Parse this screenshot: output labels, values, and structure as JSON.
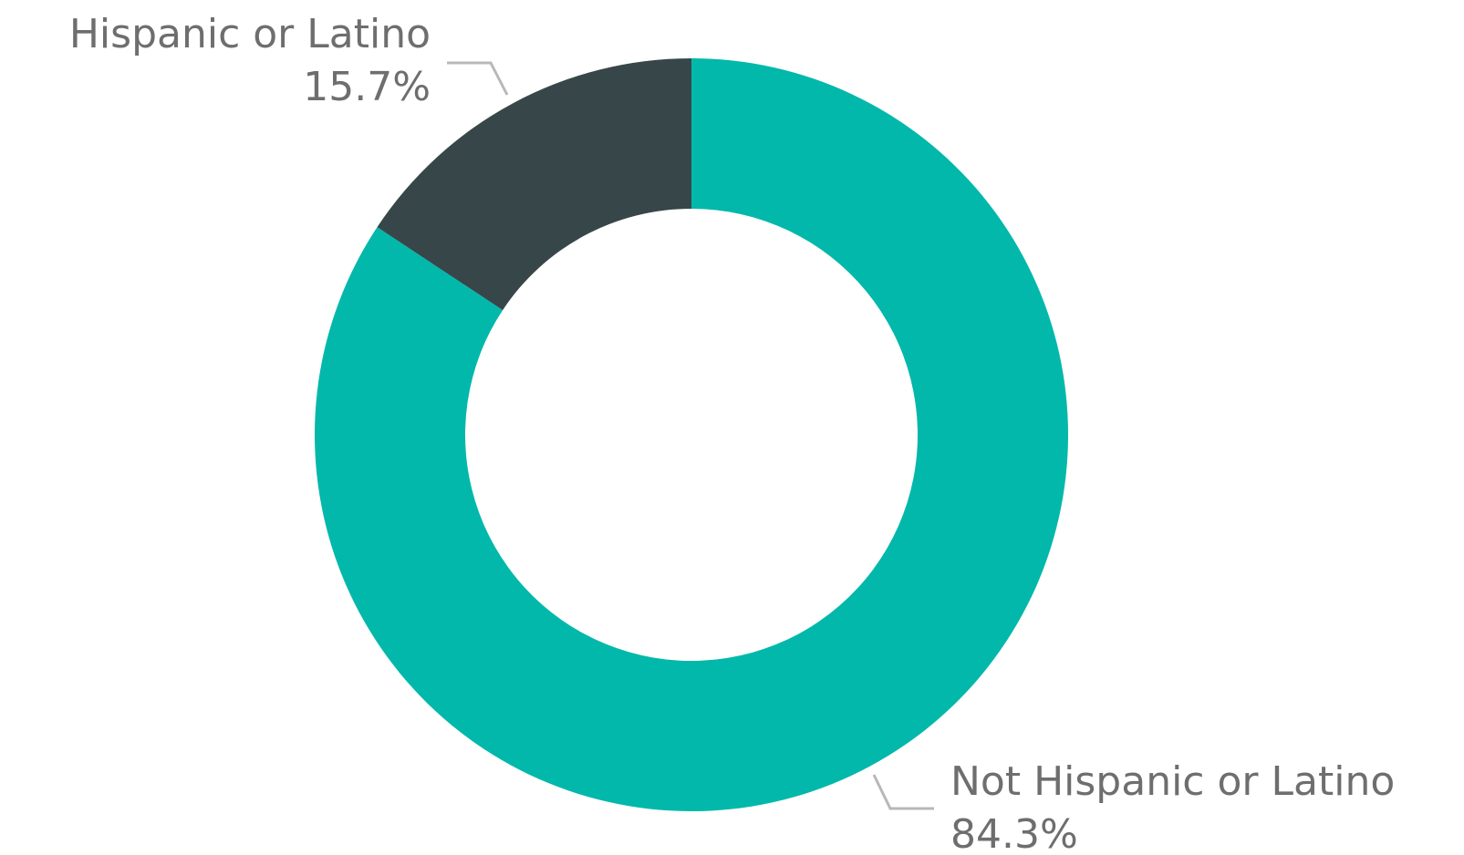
{
  "chart_data": {
    "type": "pie",
    "variant": "donut",
    "title": "",
    "categories": [
      "Not Hispanic or Latino",
      "Hispanic or Latino"
    ],
    "values": [
      84.3,
      15.7
    ],
    "value_labels": [
      "84.3%",
      "15.7%"
    ],
    "colors": [
      "#02b8ab",
      "#374649"
    ],
    "legend": "none",
    "labels": "outside with leader lines"
  }
}
